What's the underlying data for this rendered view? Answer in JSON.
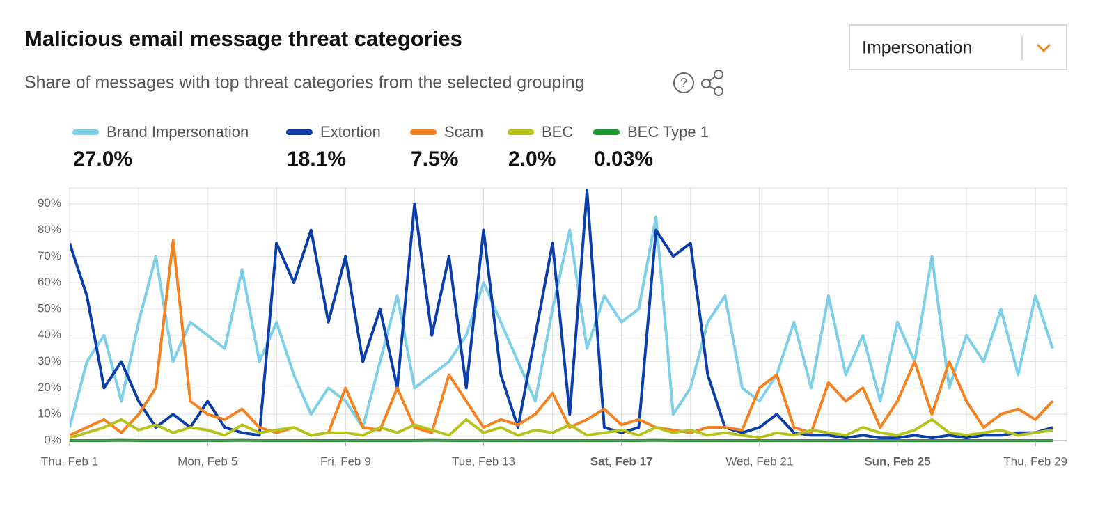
{
  "title": "Malicious email message threat categories",
  "subtitle": "Share of messages with top threat categories from the selected grouping",
  "dropdown": "Impersonation",
  "chart_data": {
    "type": "line",
    "categories": [
      "Thu, Feb 1",
      null,
      null,
      null,
      null,
      null,
      null,
      null,
      "Mon, Feb 5",
      null,
      null,
      null,
      null,
      null,
      null,
      null,
      "Fri, Feb 9",
      null,
      null,
      null,
      null,
      null,
      null,
      null,
      "Tue, Feb 13",
      null,
      null,
      null,
      null,
      null,
      null,
      null,
      "Sat, Feb 17",
      null,
      null,
      null,
      null,
      null,
      null,
      null,
      "Wed, Feb 21",
      null,
      null,
      null,
      null,
      null,
      null,
      null,
      "Sun, Feb 25",
      null,
      null,
      null,
      null,
      null,
      null,
      null,
      "Thu, Feb 29",
      null
    ],
    "ylim": [
      0,
      96
    ],
    "yticks": [
      {
        "value": 0,
        "label": "0%"
      },
      {
        "value": 10,
        "label": "10%"
      },
      {
        "value": 20,
        "label": "20%"
      },
      {
        "value": 30,
        "label": "30%"
      },
      {
        "value": 40,
        "label": "40%"
      },
      {
        "value": 50,
        "label": "50%"
      },
      {
        "value": 60,
        "label": "60%"
      },
      {
        "value": 70,
        "label": "70%"
      },
      {
        "value": 80,
        "label": "80%"
      },
      {
        "value": 90,
        "label": "90%"
      }
    ],
    "grid": true,
    "series": [
      {
        "name": "Brand Impersonation",
        "color": "#7dd0e8",
        "summary": {
          "value": 27.0,
          "label": "27.0%"
        },
        "values": [
          5,
          30,
          40,
          15,
          45,
          70,
          30,
          45,
          40,
          35,
          65,
          30,
          45,
          25,
          10,
          20,
          15,
          5,
          30,
          55,
          20,
          25,
          30,
          40,
          60,
          45,
          30,
          15,
          50,
          80,
          35,
          55,
          45,
          50,
          85,
          10,
          20,
          45,
          55,
          20,
          15,
          25,
          45,
          20,
          55,
          25,
          40,
          15,
          45,
          30,
          70,
          20,
          40,
          30,
          50,
          25,
          55,
          35
        ]
      },
      {
        "name": "Extortion",
        "color": "#0b3ea8",
        "summary": {
          "value": 18.1,
          "label": "18.1%"
        },
        "values": [
          75,
          55,
          20,
          30,
          15,
          5,
          10,
          5,
          15,
          5,
          3,
          2,
          75,
          60,
          80,
          45,
          70,
          30,
          50,
          20,
          90,
          40,
          70,
          20,
          80,
          25,
          5,
          40,
          75,
          10,
          95,
          5,
          3,
          5,
          80,
          70,
          75,
          25,
          5,
          3,
          5,
          10,
          3,
          2,
          2,
          1,
          2,
          1,
          1,
          2,
          1,
          2,
          1,
          2,
          2,
          3,
          3,
          5
        ]
      },
      {
        "name": "Scam",
        "color": "#f58220",
        "summary": {
          "value": 7.5,
          "label": "7.5%"
        },
        "values": [
          2,
          5,
          8,
          3,
          10,
          20,
          76,
          15,
          10,
          8,
          12,
          5,
          3,
          5,
          2,
          3,
          20,
          5,
          4,
          20,
          5,
          3,
          25,
          15,
          5,
          8,
          6,
          10,
          18,
          5,
          8,
          12,
          6,
          8,
          5,
          4,
          3,
          5,
          5,
          4,
          20,
          25,
          5,
          3,
          22,
          15,
          20,
          5,
          15,
          30,
          10,
          30,
          15,
          5,
          10,
          12,
          8,
          15
        ]
      },
      {
        "name": "BEC",
        "color": "#b6c31b",
        "summary": {
          "value": 2.0,
          "label": "2.0%"
        },
        "values": [
          1,
          3,
          5,
          8,
          4,
          6,
          3,
          5,
          4,
          2,
          6,
          3,
          4,
          5,
          2,
          3,
          3,
          2,
          5,
          3,
          6,
          4,
          2,
          8,
          3,
          5,
          2,
          4,
          3,
          6,
          2,
          3,
          4,
          2,
          5,
          3,
          4,
          2,
          3,
          2,
          1,
          3,
          2,
          4,
          3,
          2,
          5,
          3,
          2,
          4,
          8,
          3,
          2,
          3,
          4,
          2,
          3,
          4
        ]
      },
      {
        "name": "BEC Type 1",
        "color": "#1c9b2c",
        "summary": {
          "value": 0.03,
          "label": "0.03%"
        },
        "values": [
          0,
          0,
          0,
          0.1,
          0,
          0,
          0,
          0,
          0,
          0,
          0.1,
          0,
          0,
          0,
          0,
          0,
          0,
          0,
          0,
          0,
          0,
          0.1,
          0,
          0,
          0,
          0,
          0,
          0,
          0,
          0,
          0,
          0,
          0,
          0,
          0.1,
          0,
          0,
          0,
          0,
          0,
          0,
          0,
          0,
          0,
          0,
          0,
          0,
          0,
          0,
          0,
          0,
          0,
          0,
          0,
          0,
          0,
          0,
          0
        ]
      }
    ]
  }
}
